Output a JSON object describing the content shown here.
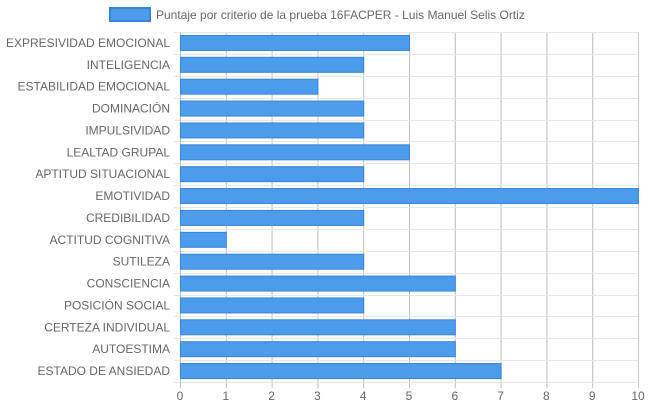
{
  "chart_data": {
    "type": "bar",
    "orientation": "horizontal",
    "categories": [
      "EXPRESIVIDAD EMOCIONAL",
      "INTELIGENCIA",
      "ESTABILIDAD EMOCIONAL",
      "DOMINACIÓN",
      "IMPULSIVIDAD",
      "LEALTAD GRUPAL",
      "APTITUD SITUACIONAL",
      "EMOTIVIDAD",
      "CREDIBILIDAD",
      "ACTITUD COGNITIVA",
      "SUTILEZA",
      "CONSCIENCIA",
      "POSICIÓN SOCIAL",
      "CERTEZA INDIVIDUAL",
      "AUTOESTIMA",
      "ESTADO DE ANSIEDAD"
    ],
    "series": [
      {
        "name": "Puntaje por criterio de la prueba 16FACPER - Luis Manuel Selis Ortiz",
        "values": [
          5,
          4,
          3,
          4,
          4,
          5,
          4,
          10,
          4,
          1,
          4,
          6,
          4,
          6,
          6,
          7
        ],
        "color": "#4c9cec",
        "border_color": "#3a84d6"
      }
    ],
    "xlim": [
      0,
      10
    ],
    "x_ticks": [
      0,
      1,
      2,
      3,
      4,
      5,
      6,
      7,
      8,
      9,
      10
    ],
    "grid": true,
    "legend_position": "top"
  }
}
